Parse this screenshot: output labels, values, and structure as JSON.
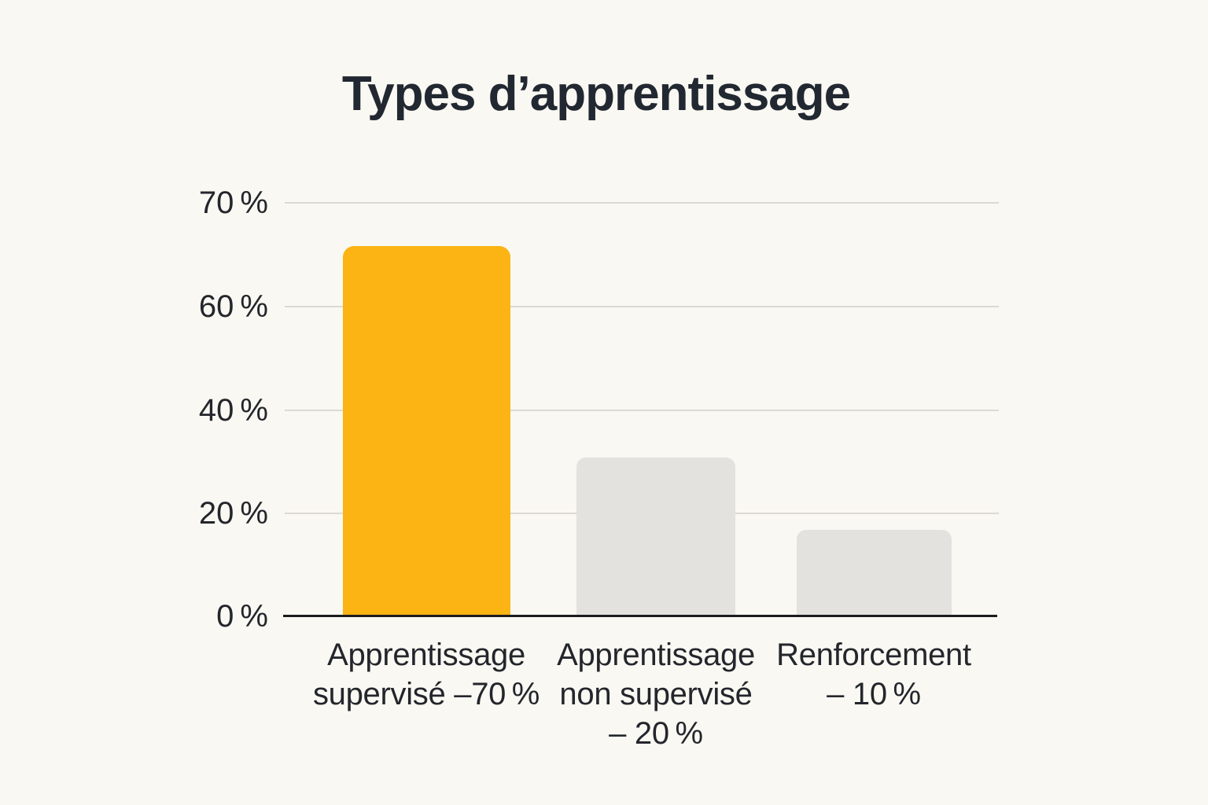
{
  "title": "Types d’apprentissage",
  "chart_data": {
    "type": "bar",
    "title": "Types d’apprentissage",
    "orientation": "vertical",
    "grid": "horizontal",
    "legend": "none",
    "y_axis": {
      "tick_labels": [
        "70 %",
        "60 %",
        "40 %",
        "20 %",
        "0 %"
      ],
      "ylim": [
        0,
        75
      ]
    },
    "categories": [
      {
        "name": "Apprentissage supervisé",
        "value": 70,
        "lines": [
          "Apprentissage",
          "supervisé –70 %"
        ]
      },
      {
        "name": "Apprentissage non supervisé",
        "value": 20,
        "lines": [
          "Apprentissage",
          "non supervisé",
          "– 20 %"
        ]
      },
      {
        "name": "Renforcement",
        "value": 10,
        "lines": [
          "Renforcement",
          "– 10 %"
        ]
      }
    ],
    "values": [
      70,
      20,
      10
    ],
    "colors": {
      "bar_highlight": "#FCB415",
      "bar_muted": "#E3E2DF",
      "gridline": "#DBDAD6",
      "axis": "#1B1C1F",
      "text": "#23262C",
      "background": "#FAF8F2"
    }
  }
}
